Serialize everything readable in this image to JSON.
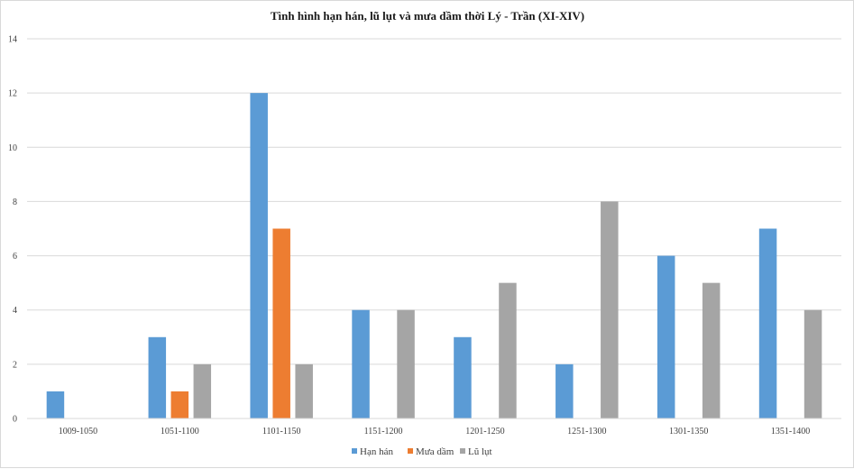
{
  "chart_data": {
    "type": "bar",
    "title": "Tình hình hạn hán, lũ lụt và mưa dầm thời Lý - Trần (XI-XIV)",
    "xlabel": "",
    "ylabel": "",
    "ylim": [
      0,
      14
    ],
    "yticks": [
      0,
      2,
      4,
      6,
      8,
      10,
      12,
      14
    ],
    "grid": true,
    "legend_position": "bottom",
    "categories": [
      "1009-1050",
      "1051-1100",
      "1101-1150",
      "1151-1200",
      "1201-1250",
      "1251-1300",
      "1301-1350",
      "1351-1400"
    ],
    "series": [
      {
        "name": "Hạn hán",
        "color": "#5b9bd5",
        "values": [
          1,
          3,
          12,
          4,
          3,
          2,
          6,
          7
        ]
      },
      {
        "name": "Mưa dầm",
        "color": "#ed7d31",
        "values": [
          0,
          1,
          7,
          0,
          0,
          0,
          0,
          0
        ]
      },
      {
        "name": "Lũ lụt",
        "color": "#a5a5a5",
        "values": [
          0,
          2,
          2,
          4,
          5,
          8,
          5,
          4
        ]
      }
    ]
  }
}
